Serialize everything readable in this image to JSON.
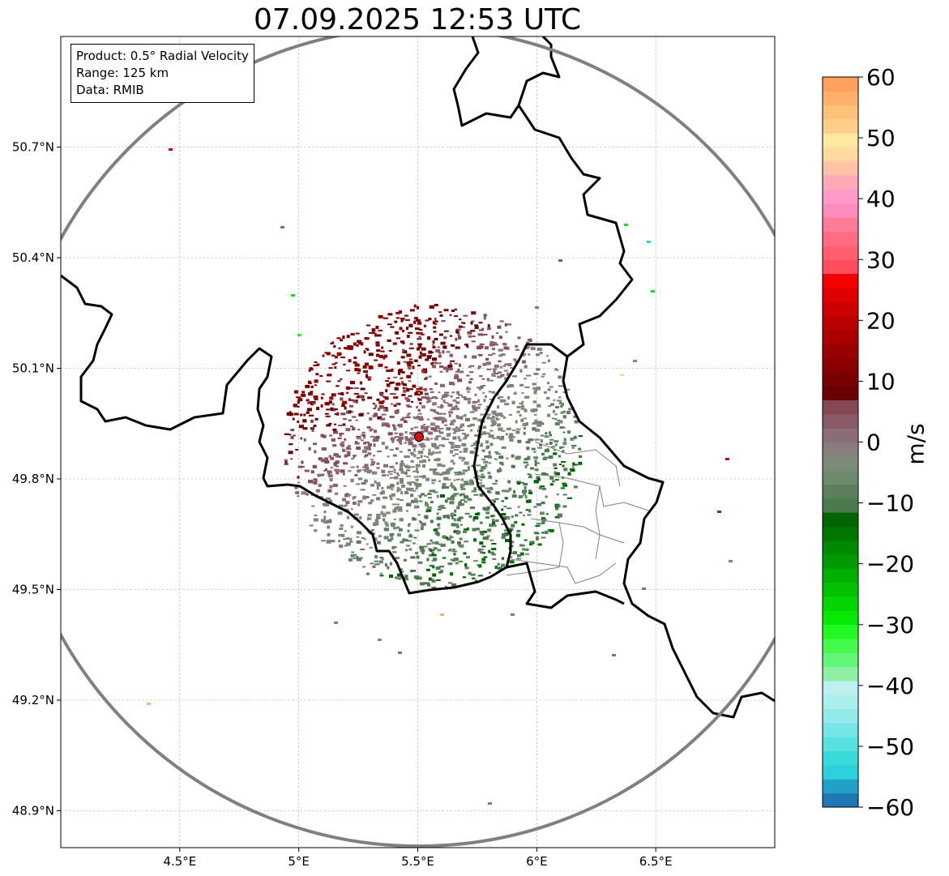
{
  "title": "07.09.2025 12:53 UTC",
  "info": {
    "product": "Product: 0.5° Radial Velocity",
    "range": "Range: 125 km",
    "source": "Data: RMIB"
  },
  "map": {
    "lon_range": [
      4.0,
      7.0
    ],
    "lat_range": [
      48.8,
      51.0
    ],
    "x_ticks": [
      {
        "value": 4.5,
        "label": "4.5°E"
      },
      {
        "value": 5.0,
        "label": "5°E"
      },
      {
        "value": 5.5,
        "label": "5.5°E"
      },
      {
        "value": 6.0,
        "label": "6°E"
      },
      {
        "value": 6.5,
        "label": "6.5°E"
      }
    ],
    "y_ticks": [
      {
        "value": 50.7,
        "label": "50.7°N"
      },
      {
        "value": 50.4,
        "label": "50.4°N"
      },
      {
        "value": 50.1,
        "label": "50.1°N"
      },
      {
        "value": 49.8,
        "label": "49.8°N"
      },
      {
        "value": 49.5,
        "label": "49.5°N"
      },
      {
        "value": 49.2,
        "label": "49.2°N"
      },
      {
        "value": 48.9,
        "label": "48.9°N"
      }
    ],
    "radar_site": {
      "lon": 5.505,
      "lat": 49.914
    },
    "range_km": 125,
    "grid": true
  },
  "colorbar": {
    "unit": "m/s",
    "min": -60,
    "max": 60,
    "ticks": [
      60,
      50,
      40,
      30,
      20,
      10,
      0,
      -10,
      -20,
      -30,
      -40,
      -50,
      -60
    ],
    "tick_labels": [
      "60",
      "50",
      "40",
      "30",
      "20",
      "10",
      "0",
      "−10",
      "−20",
      "−30",
      "−40",
      "−50",
      "−60"
    ],
    "colors": [
      "#1f78b4",
      "#22a1c8",
      "#2bd0da",
      "#3adada",
      "#58e0e0",
      "#77e5e5",
      "#94eaea",
      "#abeeee",
      "#bff0f0",
      "#8ff0a5",
      "#63f577",
      "#45fa4a",
      "#22f922",
      "#05ea05",
      "#04d504",
      "#03c203",
      "#02b002",
      "#019b01",
      "#018801",
      "#007500",
      "#006400",
      "#4c7a4c",
      "#5d7f5d",
      "#6d8a6d",
      "#7d8a7a",
      "#8a7d7d",
      "#8a6d78",
      "#8a5a66",
      "#854855",
      "#6b0000",
      "#7a0000",
      "#8a0000",
      "#9a0000",
      "#aa0000",
      "#ba0000",
      "#cc0000",
      "#e00000",
      "#f50000",
      "#ff4d5e",
      "#ff5d70",
      "#ff6d84",
      "#ff7c98",
      "#ff8cbc",
      "#ff99c8",
      "#ffa8b8",
      "#ffc2a6",
      "#ffd9a0",
      "#ffe9a0",
      "#ffcf8a",
      "#ffc07a",
      "#ffb06a",
      "#ffa05c"
    ]
  },
  "map_colors": {
    "range_ring": "#808080",
    "borders": "#000000",
    "admin_lines": "#808080",
    "site_marker": "#dd1111"
  }
}
